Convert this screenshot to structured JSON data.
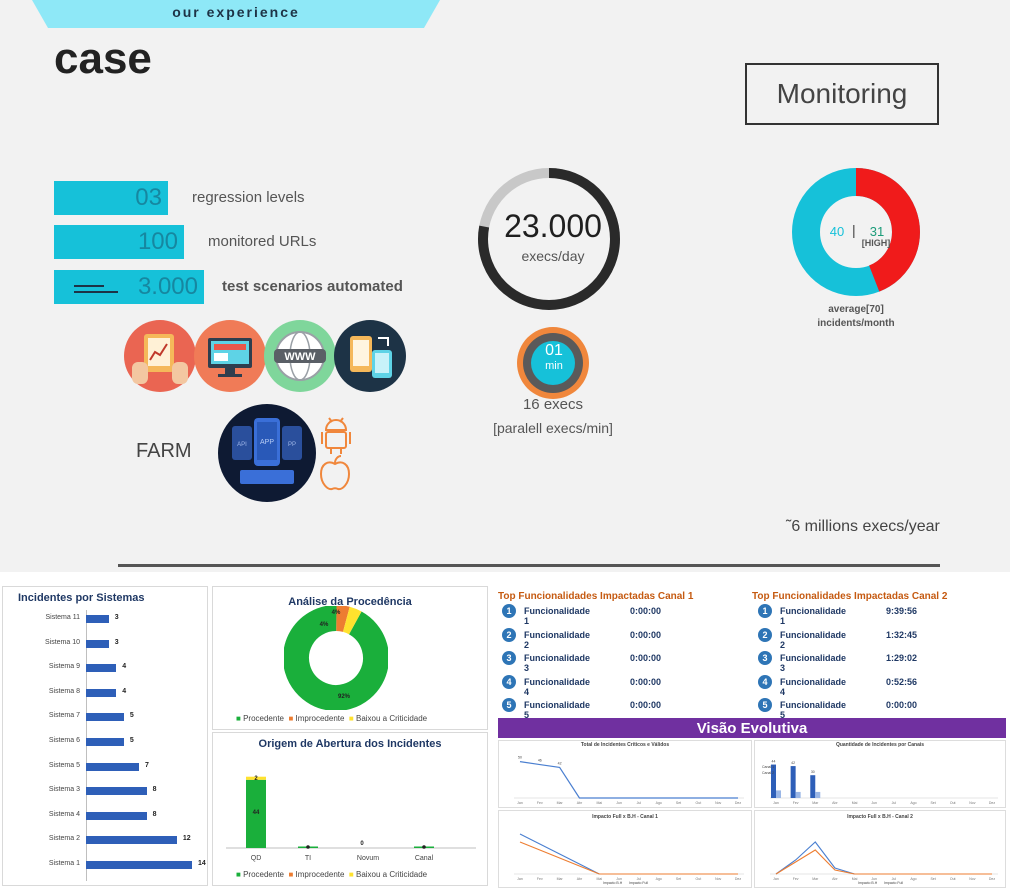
{
  "slide": {
    "ribbon_text": "our experience",
    "title": "case",
    "monitoring_label": "Monitoring",
    "kpis": [
      {
        "value": "03",
        "label": "regression levels"
      },
      {
        "value": "100",
        "label": "monitored URLs"
      },
      {
        "value": "3.000",
        "label": "test scenarios automated"
      }
    ],
    "farm_label": "FARM",
    "farm_screen_text": {
      "left": "API",
      "center": "APP",
      "right": "PP"
    },
    "www_text": "WWW",
    "execs": {
      "value": "23.000",
      "unit": "execs/day",
      "ring_fraction": 0.78
    },
    "timer": {
      "value": "01",
      "unit": "min",
      "execs": "16 execs",
      "parallel": "[paralell execs/min]"
    },
    "incidents": {
      "low": "40",
      "separator": "|",
      "high": "31",
      "high_label": "[HIGH]",
      "avg": "average[70]",
      "per": "incidents/month",
      "high_share": 0.44
    },
    "yearly": "˜6 millions execs/year",
    "colors": {
      "cyan": "#16c1d9",
      "red": "#f01b1b",
      "dark": "#1d3346",
      "orange": "#f0873c"
    }
  },
  "incidentes_sistemas": {
    "title": "Incidentes por Sistemas",
    "rows": [
      {
        "label": "Sistema 11",
        "value": 3
      },
      {
        "label": "Sistema 10",
        "value": 3
      },
      {
        "label": "Sistema 9",
        "value": 4
      },
      {
        "label": "Sistema 8",
        "value": 4
      },
      {
        "label": "Sistema 7",
        "value": 5
      },
      {
        "label": "Sistema 6",
        "value": 5
      },
      {
        "label": "Sistema 5",
        "value": 7
      },
      {
        "label": "Sistema 3",
        "value": 8
      },
      {
        "label": "Sistema 4",
        "value": 8
      },
      {
        "label": "Sistema 2",
        "value": 12
      },
      {
        "label": "Sistema 1",
        "value": 14
      }
    ]
  },
  "analise": {
    "title": "Análise da Procedência",
    "slices": [
      {
        "name": "Procedente",
        "value": 92,
        "label": "92%",
        "color": "#1aaf3b"
      },
      {
        "name": "Improcedente",
        "value": 4,
        "label": "4%",
        "color": "#ed7d31"
      },
      {
        "name": "Baixou a Criticidade",
        "value": 4,
        "label": "4%",
        "color": "#ffe22e"
      }
    ]
  },
  "origem": {
    "title": "Origem de Abertura dos Incidentes",
    "categories": [
      "QD",
      "TI",
      "Novum",
      "Canal"
    ],
    "procedente": [
      44,
      1,
      0,
      1
    ],
    "baixou": [
      2,
      0,
      0,
      0
    ],
    "labels": {
      "qd_proc": "44",
      "qd_baixou": "2",
      "novum": "0"
    },
    "legend": [
      "Procedente",
      "Improcedente",
      "Baixou a Criticidade"
    ]
  },
  "top1": {
    "title": "Top Funcionalidades Impactadas Canal 1",
    "rows": [
      {
        "n": "1",
        "name": "Funcionalidade 1",
        "time": "0:00:00"
      },
      {
        "n": "2",
        "name": "Funcionalidade 2",
        "time": "0:00:00"
      },
      {
        "n": "3",
        "name": "Funcionalidade 3",
        "time": "0:00:00"
      },
      {
        "n": "4",
        "name": "Funcionalidade 4",
        "time": "0:00:00"
      },
      {
        "n": "5",
        "name": "Funcionalidade 5",
        "time": "0:00:00"
      }
    ]
  },
  "top2": {
    "title": "Top Funcionalidades Impactadas Canal 2",
    "rows": [
      {
        "n": "1",
        "name": "Funcionalidade 1",
        "time": "9:39:56"
      },
      {
        "n": "2",
        "name": "Funcionalidade 2",
        "time": "1:32:45"
      },
      {
        "n": "3",
        "name": "Funcionalidade 3",
        "time": "1:29:02"
      },
      {
        "n": "4",
        "name": "Funcionalidade 4",
        "time": "0:52:56"
      },
      {
        "n": "5",
        "name": "Funcionalidade 5",
        "time": "0:00:00"
      }
    ]
  },
  "visao": {
    "title": "Visão Evolutiva",
    "chart1_title": "Total de Incidentes Críticos e Válidos",
    "chart2_title": "Quantidade de Incidentes por Canais",
    "chart3_title": "Impacto Full x B.H - Canal 1",
    "chart4_title": "Impacto Full x B.H - Canal 2",
    "months": [
      "Jan",
      "Fev",
      "Mar",
      "Abr",
      "Mai",
      "Jun",
      "Jul",
      "Ago",
      "Set",
      "Out",
      "Nov",
      "Dez"
    ],
    "chart1_values": [
      50,
      46,
      42,
      0,
      0,
      0,
      0,
      0,
      0,
      0,
      0,
      0
    ],
    "chart1_labels": [
      "50",
      "46",
      "42"
    ],
    "chart2_canal1": [
      44,
      42,
      30
    ],
    "chart2_canal2": [
      10,
      8,
      8
    ],
    "chart2_labels": [
      "44",
      "42",
      "30"
    ],
    "chart2_legend": [
      "Canal 1",
      "Canal 2"
    ],
    "chart34_legend": [
      "Impacto B.H",
      "Impacto Full"
    ]
  }
}
